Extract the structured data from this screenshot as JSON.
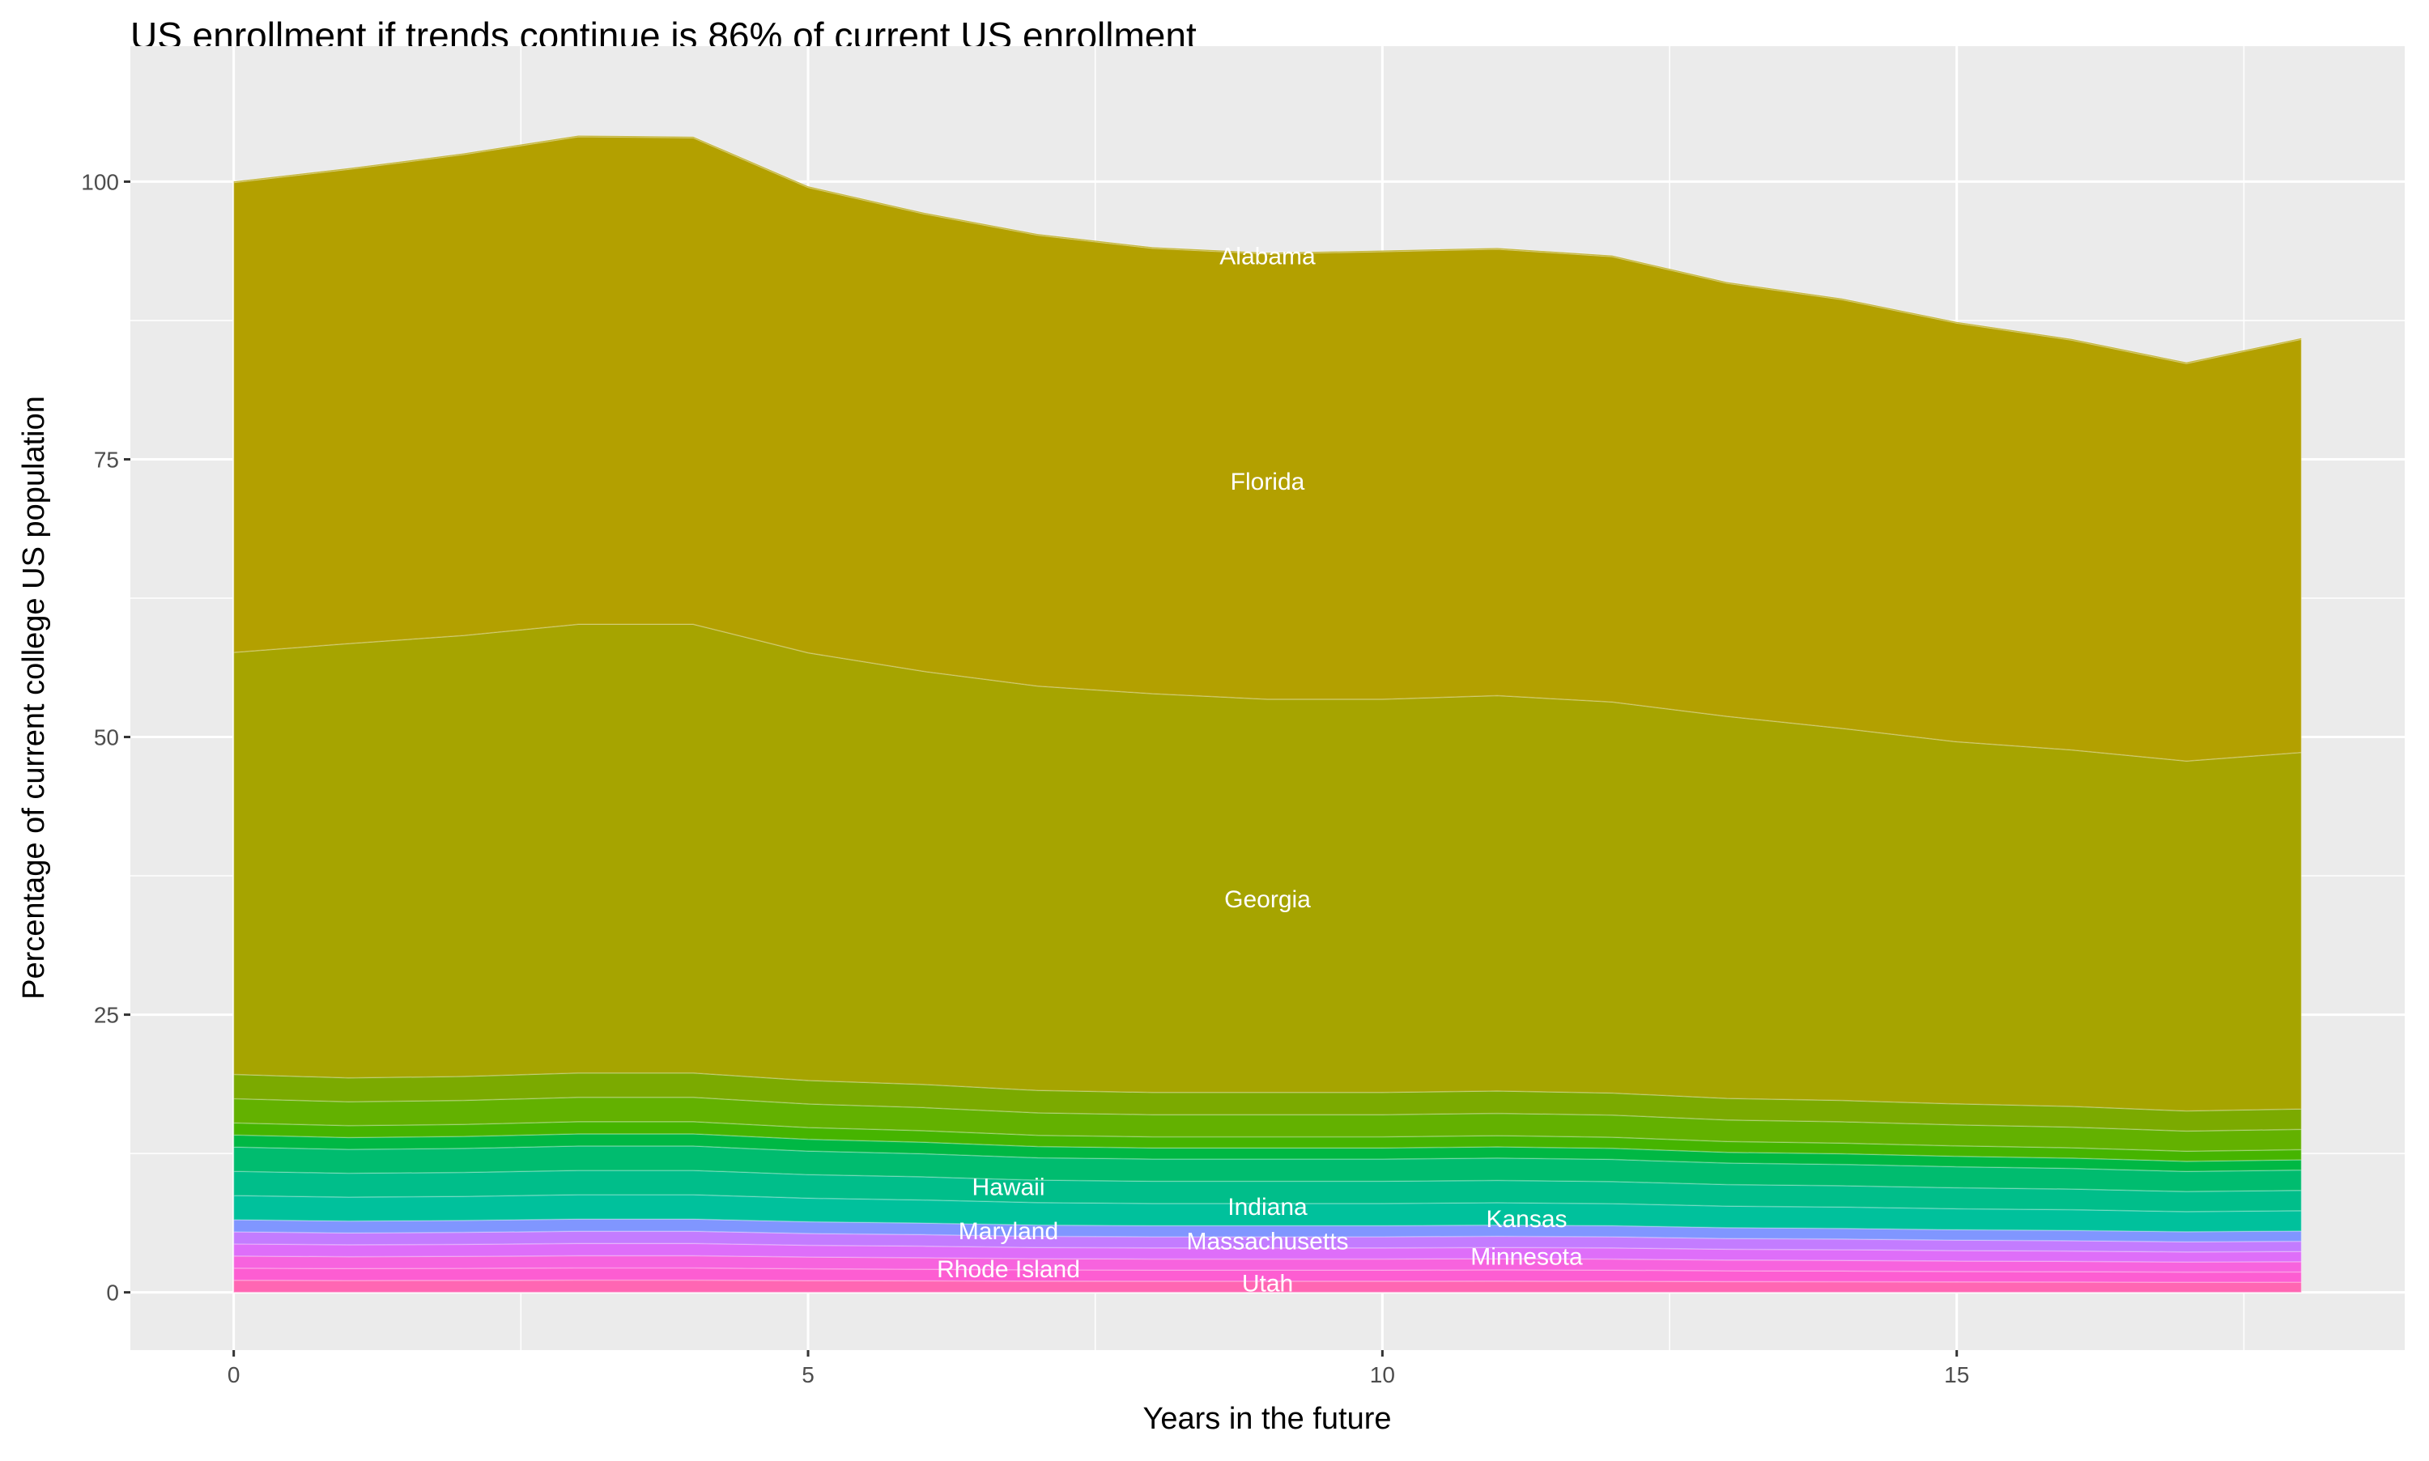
{
  "chart_data": {
    "type": "area",
    "stacked": true,
    "title": "US enrollment if trends continue is 86% of current US enrollment",
    "xlabel": "Years in the future",
    "ylabel": "Percentage of current college US population",
    "x": [
      0,
      1,
      2,
      3,
      4,
      5,
      6,
      7,
      8,
      9,
      10,
      11,
      12,
      13,
      14,
      15,
      16,
      17,
      18
    ],
    "xlim": [
      -0.9,
      18.9
    ],
    "ylim": [
      -5.2,
      112.2
    ],
    "xticks": [
      0,
      5,
      10,
      15
    ],
    "yticks": [
      0,
      25,
      50,
      75,
      100
    ],
    "xtick_labels": [
      "0",
      "5",
      "10",
      "15"
    ],
    "ytick_labels": [
      "0",
      "25",
      "50",
      "75",
      "100"
    ],
    "grid": true,
    "legend": "none",
    "panel_background": "#EBEBEB",
    "series": [
      {
        "color": "#FF66B3",
        "values": [
          1.09,
          1.07,
          1.08,
          1.1,
          1.1,
          1.06,
          1.04,
          1.01,
          1.0,
          1.0,
          1.0,
          1.01,
          1.0,
          0.97,
          0.96,
          0.94,
          0.93,
          0.91,
          0.92
        ]
      },
      {
        "color": "#FD5DD2",
        "values": [
          1.09,
          1.07,
          1.08,
          1.1,
          1.1,
          1.06,
          1.04,
          1.01,
          1.0,
          1.0,
          1.0,
          1.01,
          1.0,
          0.97,
          0.96,
          0.94,
          0.93,
          0.91,
          0.92
        ]
      },
      {
        "color": "#F763DE",
        "values": [
          1.09,
          1.07,
          1.08,
          1.1,
          1.1,
          1.06,
          1.04,
          1.01,
          1.0,
          1.0,
          1.0,
          1.01,
          1.0,
          0.97,
          0.96,
          0.94,
          0.93,
          0.91,
          0.92
        ]
      },
      {
        "color": "#DE6EF9",
        "values": [
          1.09,
          1.07,
          1.08,
          1.1,
          1.1,
          1.06,
          1.04,
          1.01,
          1.0,
          1.0,
          1.0,
          1.01,
          1.0,
          0.97,
          0.96,
          0.94,
          0.93,
          0.91,
          0.92
        ]
      },
      {
        "color": "#C37CFF",
        "values": [
          1.09,
          1.07,
          1.08,
          1.1,
          1.1,
          1.06,
          1.04,
          1.01,
          1.0,
          1.0,
          1.0,
          1.01,
          1.0,
          0.97,
          0.96,
          0.94,
          0.93,
          0.91,
          0.92
        ]
      },
      {
        "color": "#8096FF",
        "values": [
          1.09,
          1.07,
          1.08,
          1.1,
          1.1,
          1.06,
          1.04,
          1.01,
          1.0,
          1.0,
          1.0,
          1.01,
          1.0,
          0.97,
          0.96,
          0.94,
          0.93,
          0.91,
          0.92
        ]
      },
      {
        "color": "#00C19C",
        "values": [
          2.18,
          2.15,
          2.16,
          2.19,
          2.19,
          2.12,
          2.08,
          2.02,
          2.0,
          2.0,
          2.0,
          2.01,
          1.99,
          1.94,
          1.92,
          1.89,
          1.86,
          1.81,
          1.83
        ]
      },
      {
        "color": "#00BE8A",
        "values": [
          2.18,
          2.15,
          2.16,
          2.19,
          2.19,
          2.12,
          2.08,
          2.02,
          2.0,
          2.0,
          2.0,
          2.01,
          1.99,
          1.94,
          1.92,
          1.89,
          1.86,
          1.81,
          1.83
        ]
      },
      {
        "color": "#00BC6F",
        "values": [
          2.18,
          2.15,
          2.16,
          2.19,
          2.19,
          2.12,
          2.08,
          2.02,
          2.0,
          2.0,
          2.0,
          2.01,
          1.99,
          1.94,
          1.92,
          1.89,
          1.86,
          1.81,
          1.83
        ]
      },
      {
        "color": "#00B844",
        "values": [
          1.09,
          1.07,
          1.08,
          1.1,
          1.1,
          1.06,
          1.04,
          1.01,
          1.0,
          1.0,
          1.0,
          1.01,
          1.0,
          0.97,
          0.96,
          0.94,
          0.93,
          0.91,
          0.92
        ]
      },
      {
        "color": "#46B400",
        "values": [
          1.09,
          1.07,
          1.08,
          1.1,
          1.1,
          1.06,
          1.04,
          1.01,
          1.0,
          1.0,
          1.0,
          1.01,
          1.0,
          0.97,
          0.96,
          0.94,
          0.93,
          0.91,
          0.92
        ]
      },
      {
        "color": "#63B100",
        "values": [
          2.18,
          2.15,
          2.16,
          2.19,
          2.19,
          2.12,
          2.08,
          2.02,
          2.0,
          2.0,
          2.0,
          2.01,
          1.99,
          1.94,
          1.92,
          1.89,
          1.86,
          1.81,
          1.83
        ]
      },
      {
        "color": "#7BAA00",
        "values": [
          2.18,
          2.15,
          2.16,
          2.19,
          2.19,
          2.12,
          2.08,
          2.02,
          2.0,
          2.0,
          2.0,
          2.01,
          1.99,
          1.94,
          1.92,
          1.89,
          1.86,
          1.81,
          1.83
        ]
      },
      {
        "color": "#A6A400",
        "values": [
          38.0,
          39.1,
          39.7,
          40.4,
          40.4,
          38.5,
          37.2,
          36.4,
          35.9,
          35.4,
          35.4,
          35.6,
          35.2,
          34.4,
          33.5,
          32.6,
          32.1,
          31.5,
          32.1
        ]
      },
      {
        "color": "#B3A000",
        "values": [
          42.3,
          42.7,
          43.3,
          43.9,
          43.8,
          41.9,
          41.2,
          40.6,
          40.1,
          40.1,
          40.3,
          40.2,
          40.1,
          39.0,
          38.6,
          37.7,
          36.9,
          35.8,
          37.2
        ]
      },
      {
        "color": "#B3A000",
        "values": [
          0.1,
          0.1,
          0.1,
          0.1,
          0.1,
          0.1,
          0.1,
          0.1,
          0.1,
          0.1,
          0.1,
          0.1,
          0.1,
          0.1,
          0.1,
          0.1,
          0.1,
          0.1,
          0.1
        ]
      }
    ],
    "annotations": [
      {
        "text": "Alabama",
        "x": 9,
        "y": 93.3
      },
      {
        "text": "Florida",
        "x": 9,
        "y": 73.0
      },
      {
        "text": "Georgia",
        "x": 9,
        "y": 35.4
      },
      {
        "text": "Hawaii",
        "x": 9,
        "y": 9.5
      },
      {
        "text": "Indiana",
        "x": 9,
        "y": 7.7
      },
      {
        "text": "Kansas",
        "x": 9,
        "y": 6.6
      },
      {
        "text": "Maryland",
        "x": 9,
        "y": 5.5
      },
      {
        "text": "Massachusetts",
        "x": 9,
        "y": 4.6
      },
      {
        "text": "Minnesota",
        "x": 9,
        "y": 3.2
      },
      {
        "text": "Rhode Island",
        "x": 9,
        "y": 2.1
      },
      {
        "text": "Utah",
        "x": 9,
        "y": 0.8
      }
    ]
  }
}
